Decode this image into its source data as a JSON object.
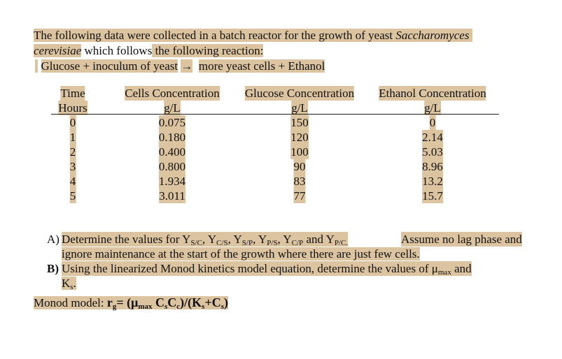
{
  "intro": {
    "line1": "The following data were collected in a batch reactor for the growth of yeast ",
    "species_genus": "Saccharomyces",
    "species_epithet": "cerevisiae",
    "line2_a": " which follows",
    "line2_b": " the following reaction:",
    "reaction_left": "Glucose + inoculum of yeast",
    "arrow": "→",
    "reaction_right": "more yeast cells + Ethanol"
  },
  "table": {
    "headers": [
      {
        "title": "Time",
        "unit": "Hours"
      },
      {
        "title": "Cells Concentration",
        "unit": "g/L"
      },
      {
        "title": "Glucose Concentration",
        "unit": "g/L"
      },
      {
        "title": "Ethanol Concentration",
        "unit": "g/L"
      }
    ],
    "rows": [
      [
        "0",
        "0.075",
        "150",
        "0"
      ],
      [
        "1",
        "0.180",
        "120",
        "2.14"
      ],
      [
        "2",
        "0.400",
        "100",
        "5.03"
      ],
      [
        "3",
        "0.800",
        "90",
        "8.96"
      ],
      [
        "4",
        "1.934",
        "83",
        "13.2"
      ],
      [
        "5",
        "3.011",
        "77",
        "15.7"
      ]
    ]
  },
  "questions": {
    "a_label": "A)",
    "a_text1": "Determine the values for ",
    "yields": [
      {
        "sym": "Y",
        "sub": "S/C",
        "after": ", "
      },
      {
        "sym": "Y",
        "sub": "C/S",
        "after": ", "
      },
      {
        "sym": "Y",
        "sub": "S/P",
        "after": ", "
      },
      {
        "sym": "Y",
        "sub": "P/S",
        "after": ", "
      },
      {
        "sym": "Y",
        "sub": "C/P",
        "after": " and "
      },
      {
        "sym": "Y",
        "sub": "P/C.",
        "after": ""
      }
    ],
    "a_text2": " Assume no lag phase and",
    "a_text3": "ignore maintenance at the start of the growth where there are just few cells.",
    "b_label": "B)",
    "b_text1": "Using the linearized Monod kinetics model equation, determine the values of ",
    "mu": "μ",
    "mu_sub": "max",
    "b_and": " and",
    "ks": "K",
    "ks_sub": "s",
    "ks_after": "."
  },
  "monod": {
    "label": "Monod model: ",
    "r": "r",
    "r_sub": "g",
    "eq1": "= (",
    "mu": "μ",
    "mu_sub": "max",
    "c1": " C",
    "c1_sub": "s",
    "c2": "C",
    "c2_sub": "c",
    "eq2": ")/(K",
    "k_sub": "s",
    "eq3": "+C",
    "c3_sub": "s",
    "eq4": ")"
  },
  "colors": {
    "highlight": "#dcc4a0"
  }
}
